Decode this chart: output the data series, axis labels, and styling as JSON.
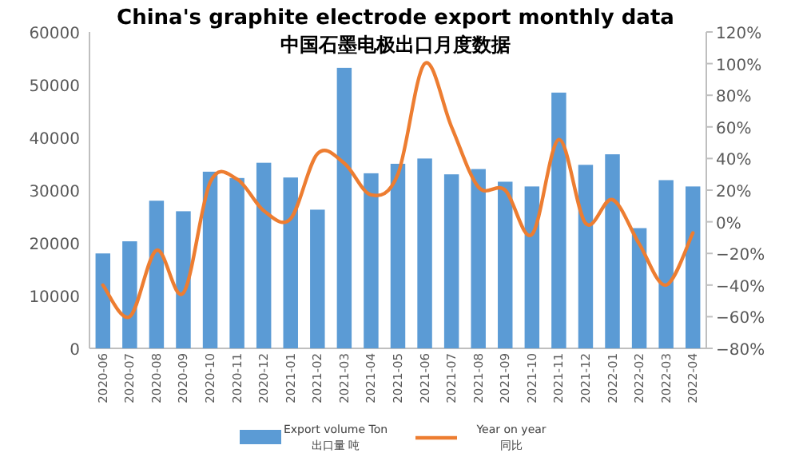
{
  "chart_data": {
    "type": "bar",
    "title": "China's graphite electrode export monthly data",
    "subtitle": "中国石墨电极出口月度数据",
    "categories": [
      "2020-06",
      "2020-07",
      "2020-08",
      "2020-09",
      "2020-10",
      "2020-11",
      "2020-12",
      "2021-01",
      "2021-02",
      "2021-03",
      "2021-04",
      "2021-05",
      "2021-06",
      "2021-07",
      "2021-08",
      "2021-09",
      "2021-10",
      "2021-11",
      "2021-12",
      "2022-01",
      "2022-02",
      "2022-03",
      "2022-04"
    ],
    "series": [
      {
        "name": "Export volume  Ton\n出口量  吨",
        "color": "#5b9bd5",
        "values": [
          18000,
          20300,
          28000,
          26000,
          33500,
          32300,
          35200,
          32400,
          26300,
          53200,
          33200,
          35000,
          36000,
          33000,
          34000,
          31600,
          30700,
          48500,
          34800,
          36800,
          22800,
          31900,
          30700
        ]
      },
      {
        "name": "Year on year\n同比",
        "type": "line",
        "axis": "y2",
        "color": "#ed7d31",
        "values": [
          -40,
          -60,
          -18,
          -45,
          25,
          27,
          7,
          2,
          43,
          37,
          17,
          30,
          100,
          60,
          22,
          20,
          -8,
          52,
          -1,
          14,
          -14,
          -40,
          -7
        ]
      }
    ],
    "ylim": [
      0,
      60000
    ],
    "yticks": [
      0,
      10000,
      20000,
      30000,
      40000,
      50000,
      60000
    ],
    "y2lim": [
      -80,
      120
    ],
    "y2ticks": [
      {
        "value": -80,
        "label": "−80%"
      },
      {
        "value": -60,
        "label": "−60%"
      },
      {
        "value": -40,
        "label": "−40%"
      },
      {
        "value": -20,
        "label": "−20%"
      },
      {
        "value": 0,
        "label": "0%"
      },
      {
        "value": 20,
        "label": "20%"
      },
      {
        "value": 40,
        "label": "40%"
      },
      {
        "value": 60,
        "label": "60%"
      },
      {
        "value": 80,
        "label": "80%"
      },
      {
        "value": 100,
        "label": "100%"
      },
      {
        "value": 120,
        "label": "120%"
      }
    ],
    "legend": "bottom"
  }
}
